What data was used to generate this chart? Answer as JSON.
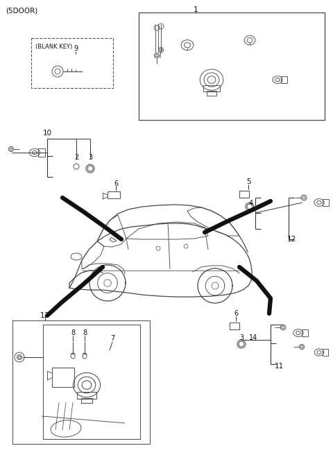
{
  "title": "(5DOOR)",
  "bg_color": "#ffffff",
  "fig_width": 4.8,
  "fig_height": 6.56,
  "dpi": 100,
  "lc": "#333333",
  "tc": "#111111",
  "parts": [
    "1",
    "2",
    "3",
    "4",
    "5",
    "6",
    "7",
    "8",
    "8",
    "9",
    "10",
    "11",
    "12",
    "13",
    "14"
  ],
  "blank_key_label": "(BLANK KEY)"
}
